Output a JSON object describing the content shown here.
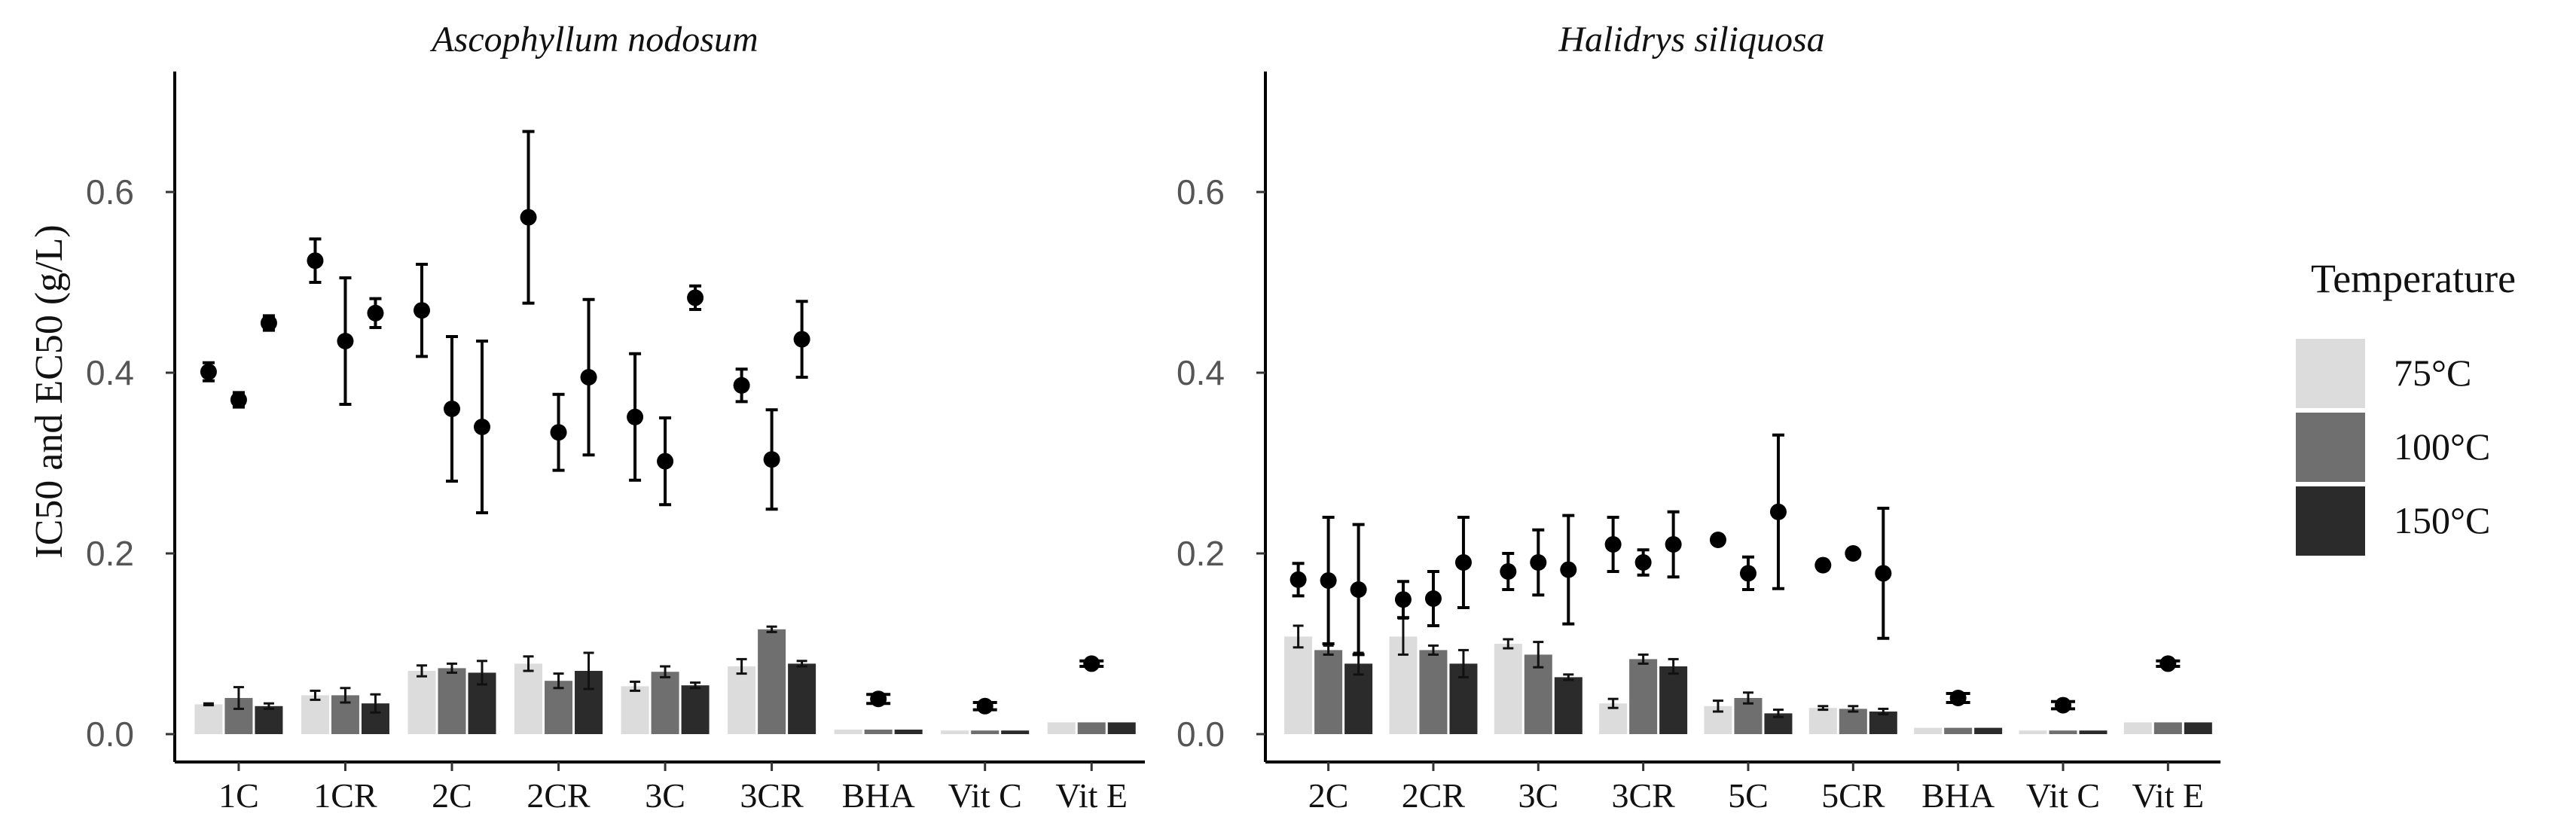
{
  "chart_data": [
    {
      "type": "bar",
      "title": "Ascophyllum nodosum",
      "ylabel": "IC50 and EC50 (g/L)",
      "xlabel": "",
      "ylim": [
        0,
        0.73
      ],
      "yticks": [
        0.0,
        0.2,
        0.4,
        0.6
      ],
      "ytick_labels": [
        "0.0",
        "0.2",
        "0.4",
        "0.6"
      ],
      "categories": [
        "1C",
        "1CR",
        "2C",
        "2CR",
        "3C",
        "3CR",
        "BHA",
        "Vit C",
        "Vit E"
      ],
      "series": [
        {
          "name": "75°C",
          "values": [
            0.033,
            0.043,
            0.07,
            0.078,
            0.053,
            0.075,
            0.005,
            0.004,
            0.013
          ],
          "errors": [
            0.001,
            0.005,
            0.006,
            0.008,
            0.005,
            0.008,
            0,
            0,
            0
          ],
          "points": [
            0.401,
            0.524,
            0.469,
            0.572,
            0.351,
            0.386,
            0.039,
            0.031,
            0.078
          ],
          "point_errors": [
            0.01,
            0.024,
            0.051,
            0.095,
            0.07,
            0.018,
            0.005,
            0.004,
            0.003
          ]
        },
        {
          "name": "100°C",
          "values": [
            0.04,
            0.043,
            0.073,
            0.059,
            0.069,
            0.116,
            0.005,
            0.004,
            0.013
          ],
          "errors": [
            0.012,
            0.008,
            0.005,
            0.008,
            0.006,
            0.003,
            0,
            0,
            0
          ],
          "points": [
            0.37,
            0.435,
            0.36,
            0.334,
            0.302,
            0.304,
            0.039,
            0.031,
            0.078
          ],
          "point_errors": [
            0.008,
            0.07,
            0.08,
            0.042,
            0.048,
            0.055,
            0.005,
            0.004,
            0.003
          ]
        },
        {
          "name": "150°C",
          "values": [
            0.031,
            0.034,
            0.068,
            0.07,
            0.054,
            0.078,
            0.005,
            0.004,
            0.013
          ],
          "errors": [
            0.003,
            0.01,
            0.013,
            0.02,
            0.003,
            0.003,
            0,
            0,
            0
          ],
          "points": [
            0.455,
            0.466,
            0.34,
            0.395,
            0.483,
            0.437,
            0.039,
            0.031,
            0.078
          ],
          "point_errors": [
            0.008,
            0.016,
            0.095,
            0.086,
            0.013,
            0.042,
            0.005,
            0.004,
            0.003
          ]
        }
      ]
    },
    {
      "type": "bar",
      "title": "Halidrys siliquosa",
      "ylabel": "",
      "xlabel": "",
      "ylim": [
        0,
        0.73
      ],
      "yticks": [
        0.0,
        0.2,
        0.4,
        0.6
      ],
      "ytick_labels": [
        "0.0",
        "0.2",
        "0.4",
        "0.6"
      ],
      "categories": [
        "2C",
        "2CR",
        "3C",
        "3CR",
        "5C",
        "5CR",
        "BHA",
        "Vit C",
        "Vit E"
      ],
      "series": [
        {
          "name": "75°C",
          "values": [
            0.108,
            0.108,
            0.1,
            0.034,
            0.031,
            0.029,
            0.007,
            0.004,
            0.013
          ],
          "errors": [
            0.012,
            0.02,
            0.005,
            0.005,
            0.006,
            0.002,
            0,
            0,
            0
          ],
          "points": [
            0.171,
            0.149,
            0.18,
            0.21,
            0.215,
            0.187,
            0.04,
            0.032,
            0.078
          ],
          "point_errors": [
            0.018,
            0.02,
            0.02,
            0.03,
            0.004,
            0.005,
            0.005,
            0.004,
            0.003
          ]
        },
        {
          "name": "100°C",
          "values": [
            0.093,
            0.093,
            0.088,
            0.083,
            0.04,
            0.028,
            0.007,
            0.004,
            0.013
          ],
          "errors": [
            0.005,
            0.005,
            0.014,
            0.005,
            0.006,
            0.003,
            0,
            0,
            0
          ],
          "points": [
            0.17,
            0.15,
            0.19,
            0.19,
            0.178,
            0.2,
            0.04,
            0.032,
            0.078
          ],
          "point_errors": [
            0.07,
            0.03,
            0.036,
            0.014,
            0.018,
            0.003,
            0.005,
            0.004,
            0.003
          ]
        },
        {
          "name": "150°C",
          "values": [
            0.078,
            0.078,
            0.063,
            0.075,
            0.023,
            0.025,
            0.007,
            0.004,
            0.013
          ],
          "errors": [
            0.012,
            0.015,
            0.003,
            0.008,
            0.004,
            0.003,
            0,
            0,
            0
          ],
          "points": [
            0.16,
            0.19,
            0.182,
            0.21,
            0.246,
            0.178,
            0.04,
            0.032,
            0.078
          ],
          "point_errors": [
            0.072,
            0.05,
            0.06,
            0.036,
            0.085,
            0.072,
            0.005,
            0.004,
            0.003
          ]
        }
      ]
    }
  ],
  "legend": {
    "title": "Temperature",
    "items": [
      {
        "label": "75°C",
        "color": "#dcdcdc"
      },
      {
        "label": "100°C",
        "color": "#6f6f6f"
      },
      {
        "label": "150°C",
        "color": "#2b2b2b"
      }
    ]
  },
  "colors": {
    "series": [
      "#dcdcdc",
      "#6f6f6f",
      "#2b2b2b"
    ],
    "points": "#000000",
    "axis": "#000000",
    "tick_text": "#555555"
  }
}
